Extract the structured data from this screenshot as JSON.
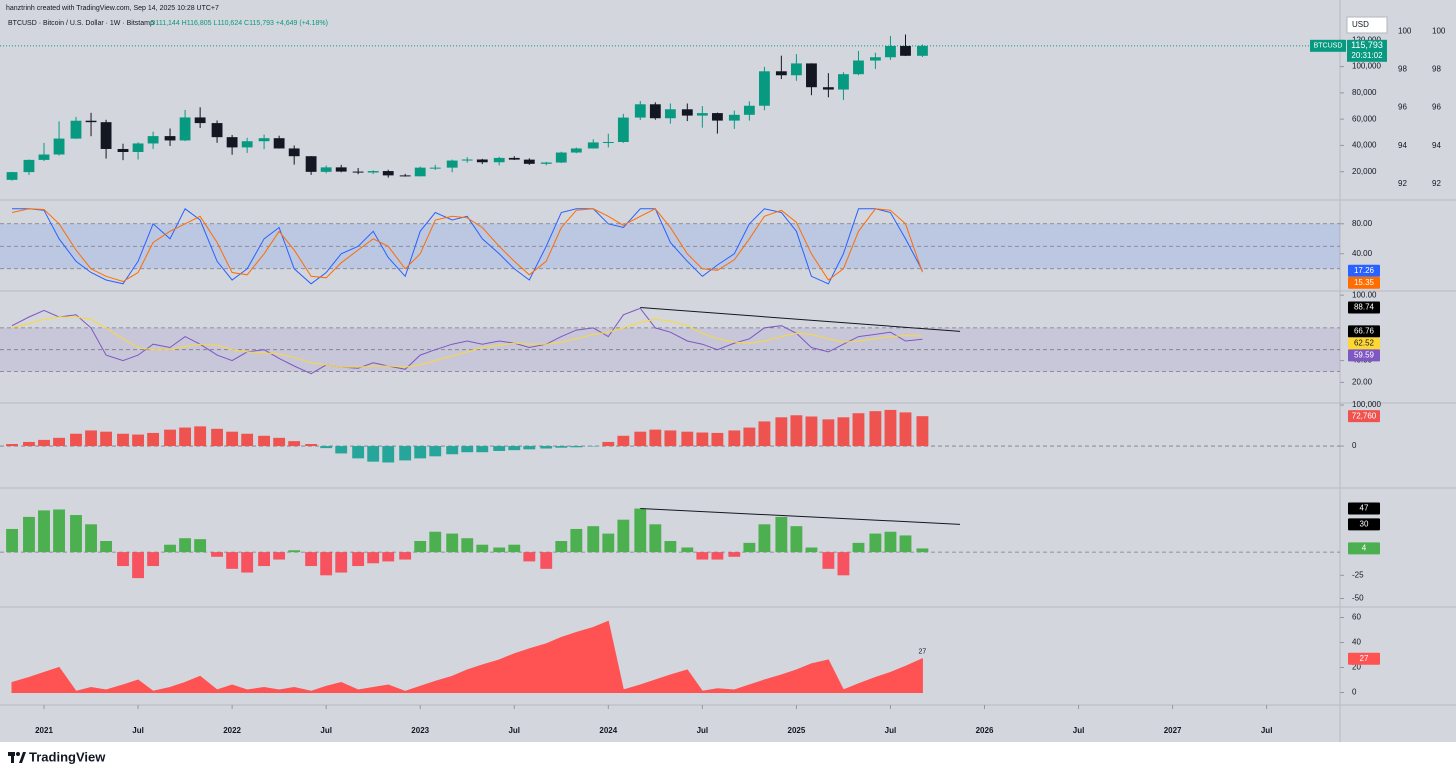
{
  "header": {
    "credit": "hanztrinh created with TradingView.com, Sep 14, 2025 10:28 UTC+7",
    "symbol_line": "BTCUSD · Bitcoin / U.S. Dollar · 1W · Bitstamp",
    "ohlc": "O111,144 H116,805 L110,624 C115,793 +4,649 (+4.18%)"
  },
  "time_axis": {
    "x": [
      2020.83,
      2020.92,
      2021.0,
      2021.08,
      2021.17,
      2021.25,
      2021.33,
      2021.42,
      2021.5,
      2021.58,
      2021.67,
      2021.75,
      2021.83,
      2021.92,
      2022.0,
      2022.08,
      2022.17,
      2022.25,
      2022.33,
      2022.42,
      2022.5,
      2022.58,
      2022.67,
      2022.75,
      2022.83,
      2022.92,
      2023.0,
      2023.08,
      2023.17,
      2023.25,
      2023.33,
      2023.42,
      2023.5,
      2023.58,
      2023.67,
      2023.75,
      2023.83,
      2023.92,
      2024.0,
      2024.08,
      2024.17,
      2024.25,
      2024.33,
      2024.42,
      2024.5,
      2024.58,
      2024.67,
      2024.75,
      2024.83,
      2024.92,
      2025.0,
      2025.08,
      2025.17,
      2025.25,
      2025.33,
      2025.42,
      2025.5,
      2025.58,
      2025.67
    ],
    "xlim": [
      2020.766,
      2027.89
    ],
    "xticks": [
      {
        "value": 2021,
        "label": "2021"
      },
      {
        "value": 2021.5,
        "label": "Jul"
      },
      {
        "value": 2022,
        "label": "2022"
      },
      {
        "value": 2022.5,
        "label": "Jul"
      },
      {
        "value": 2023,
        "label": "2023"
      },
      {
        "value": 2023.5,
        "label": "Jul"
      },
      {
        "value": 2024,
        "label": "2024"
      },
      {
        "value": 2024.5,
        "label": "Jul"
      },
      {
        "value": 2025,
        "label": "2025"
      },
      {
        "value": 2025.5,
        "label": "Jul"
      },
      {
        "value": 2026,
        "label": "2026"
      },
      {
        "value": 2026.5,
        "label": "Jul"
      },
      {
        "value": 2027,
        "label": "2027"
      },
      {
        "value": 2027.5,
        "label": "Jul"
      }
    ]
  },
  "chart_data": [
    {
      "type": "candlestick",
      "currency": "USD",
      "symbol": "BTCUSD",
      "countdown": "20:31:02",
      "last_price": {
        "value": 115793,
        "label": "115,793"
      },
      "colors": {
        "up": "#089981",
        "down": "#131722"
      },
      "open": [
        13800,
        19700,
        29000,
        33100,
        45200,
        58800,
        57700,
        37300,
        35000,
        41500,
        47100,
        43800,
        61300,
        57000,
        46300,
        38500,
        43200,
        45500,
        37700,
        31800,
        19900,
        23300,
        20100,
        19400,
        20500,
        17200,
        16500,
        23100,
        23100,
        28500,
        29300,
        27200,
        30500,
        29200,
        26000,
        27000,
        34600,
        37700,
        42300,
        42600,
        61200,
        71300,
        60700,
        67500,
        62700,
        64600,
        58900,
        63300,
        70200,
        96400,
        93400,
        102400,
        84300,
        82500,
        94200,
        104600,
        107100,
        115700,
        108200
      ],
      "high": [
        19900,
        29300,
        41900,
        58300,
        61700,
        64800,
        59500,
        41300,
        42400,
        50500,
        52900,
        67000,
        69000,
        59000,
        48000,
        45800,
        48200,
        47400,
        40000,
        31900,
        24700,
        25200,
        22800,
        21000,
        21500,
        18400,
        23900,
        25200,
        29200,
        31000,
        29800,
        31400,
        31800,
        30200,
        27500,
        35200,
        38400,
        44700,
        48900,
        64000,
        73800,
        72800,
        71900,
        71900,
        70000,
        65000,
        66500,
        73600,
        99800,
        108300,
        109500,
        102500,
        95000,
        95700,
        111900,
        110500,
        123200,
        124400,
        116800
      ],
      "low": [
        13200,
        17600,
        28100,
        32300,
        45000,
        47000,
        30000,
        28800,
        29300,
        37300,
        39600,
        43300,
        53300,
        42000,
        32900,
        34300,
        37200,
        37600,
        25400,
        17600,
        18800,
        19600,
        18100,
        18200,
        15500,
        16300,
        16500,
        21400,
        19600,
        26900,
        25800,
        24800,
        28900,
        25200,
        24900,
        26600,
        34100,
        37600,
        38500,
        41900,
        59300,
        59600,
        56600,
        58500,
        53500,
        49000,
        52600,
        58900,
        66800,
        90500,
        89200,
        78200,
        76600,
        74500,
        93400,
        98200,
        105100,
        108000,
        107300
      ],
      "close": [
        19700,
        29000,
        33100,
        45200,
        58800,
        57700,
        37300,
        35000,
        41500,
        47100,
        43800,
        61300,
        57000,
        46300,
        38500,
        43200,
        45500,
        37700,
        31800,
        19900,
        23300,
        20100,
        19400,
        20500,
        17200,
        16500,
        23100,
        23100,
        28500,
        29300,
        27200,
        30500,
        29200,
        26000,
        27000,
        34600,
        37700,
        42300,
        42600,
        61200,
        71300,
        60700,
        67500,
        62700,
        64600,
        58900,
        63300,
        70200,
        96400,
        93400,
        102400,
        84300,
        82500,
        94200,
        104600,
        107100,
        115700,
        108200,
        115793
      ],
      "ylim": [
        0,
        140000
      ],
      "yticks": [
        {
          "value": 20000,
          "label": "20,000"
        },
        {
          "value": 40000,
          "label": "40,000"
        },
        {
          "value": 60000,
          "label": "60,000"
        },
        {
          "value": 80000,
          "label": "80,000"
        },
        {
          "value": 100000,
          "label": "100,000"
        },
        {
          "value": 120000,
          "label": "120,000"
        }
      ],
      "y2lim": [
        91.26,
        100.9
      ],
      "y2ticks": [
        92,
        94,
        96,
        98,
        100
      ]
    },
    {
      "type": "line",
      "ylim": [
        -7,
        109
      ],
      "yticks": [
        {
          "value": 40,
          "label": "40.00"
        },
        {
          "value": 80,
          "label": "80.00"
        }
      ],
      "levels": [
        20,
        50,
        80
      ],
      "band_color": "rgba(41,98,255,0.13)",
      "series": [
        {
          "color": "#2962ff",
          "values": [
            100,
            100,
            98,
            60,
            30,
            15,
            5,
            0,
            30,
            80,
            60,
            100,
            85,
            30,
            5,
            20,
            60,
            75,
            20,
            0,
            15,
            40,
            50,
            70,
            35,
            10,
            70,
            95,
            85,
            90,
            60,
            40,
            20,
            5,
            50,
            95,
            100,
            100,
            80,
            75,
            100,
            100,
            55,
            30,
            10,
            25,
            40,
            80,
            100,
            95,
            70,
            10,
            0,
            40,
            100,
            100,
            95,
            60,
            17.26
          ]
        },
        {
          "color": "#ff6d00",
          "values": [
            95,
            100,
            99,
            80,
            45,
            20,
            10,
            3,
            15,
            55,
            70,
            80,
            90,
            55,
            15,
            12,
            40,
            70,
            45,
            10,
            8,
            28,
            45,
            60,
            50,
            20,
            40,
            85,
            90,
            88,
            75,
            50,
            30,
            12,
            30,
            75,
            98,
            100,
            90,
            78,
            90,
            100,
            75,
            40,
            20,
            18,
            32,
            60,
            90,
            98,
            82,
            40,
            5,
            20,
            70,
            100,
            98,
            80,
            15.35
          ]
        }
      ]
    },
    {
      "type": "line",
      "ylim": [
        2,
        102
      ],
      "yticks": [
        {
          "value": 20,
          "label": "20.00"
        },
        {
          "value": 40,
          "label": "40.00"
        },
        {
          "value": 100,
          "label": "100.00"
        }
      ],
      "levels": [
        30,
        50,
        70
      ],
      "band_color": "rgba(126,87,194,0.12)",
      "series": [
        {
          "color": "#7e57c2",
          "values": [
            72,
            80,
            86,
            80,
            82,
            70,
            45,
            40,
            45,
            55,
            52,
            62,
            55,
            45,
            40,
            48,
            50,
            42,
            35,
            28,
            36,
            34,
            33,
            38,
            35,
            32,
            45,
            50,
            55,
            58,
            55,
            58,
            56,
            52,
            55,
            62,
            68,
            70,
            62,
            82,
            88,
            70,
            66,
            58,
            55,
            50,
            56,
            60,
            70,
            72,
            65,
            52,
            48,
            55,
            62,
            64,
            66,
            58,
            59.59
          ]
        },
        {
          "color": "#fdd835",
          "values": [
            70,
            74,
            78,
            80,
            80,
            78,
            70,
            60,
            52,
            50,
            50,
            53,
            55,
            54,
            50,
            48,
            47,
            46,
            43,
            38,
            36,
            34,
            34,
            35,
            35,
            34,
            36,
            40,
            44,
            48,
            52,
            54,
            56,
            55,
            55,
            57,
            60,
            64,
            66,
            70,
            75,
            78,
            76,
            72,
            65,
            60,
            57,
            56,
            58,
            62,
            65,
            64,
            60,
            57,
            58,
            60,
            62,
            63,
            62.52
          ]
        }
      ],
      "trendline": {
        "color": "#131722",
        "x": [
          2024.17,
          2025.87
        ],
        "values": [
          88.74,
          66.76
        ]
      }
    },
    {
      "type": "bar",
      "ylim": [
        -90000,
        100000
      ],
      "yticks": [
        0,
        {
          "value": 100000,
          "label": "100,000"
        }
      ],
      "levels": [
        0
      ],
      "colors": {
        "positive": "#ef5350",
        "negative": "#26a69a"
      },
      "last_value_label": "72,760",
      "values": [
        5000,
        10000,
        15000,
        20000,
        30000,
        38000,
        35000,
        30000,
        28000,
        32000,
        40000,
        45000,
        48000,
        42000,
        35000,
        30000,
        25000,
        20000,
        12000,
        5000,
        -5000,
        -18000,
        -30000,
        -38000,
        -40000,
        -35000,
        -30000,
        -25000,
        -20000,
        -15000,
        -15000,
        -12000,
        -10000,
        -8000,
        -6000,
        -4000,
        -3000,
        -1000,
        10000,
        25000,
        35000,
        40000,
        38000,
        35000,
        33000,
        32000,
        38000,
        45000,
        60000,
        70000,
        75000,
        72000,
        65000,
        70000,
        80000,
        85000,
        88000,
        82000,
        72760
      ]
    },
    {
      "type": "bar",
      "ylim": [
        -57,
        67
      ],
      "yticks": [
        -50,
        -25
      ],
      "levels": [
        0
      ],
      "colors": {
        "positive": "#4caf50",
        "negative": "#f7525f"
      },
      "values": [
        25,
        38,
        45,
        46,
        40,
        30,
        12,
        -15,
        -28,
        -15,
        8,
        15,
        14,
        -5,
        -18,
        -22,
        -15,
        -8,
        2,
        -15,
        -25,
        -22,
        -15,
        -12,
        -10,
        -8,
        12,
        22,
        20,
        15,
        8,
        5,
        8,
        -10,
        -18,
        12,
        25,
        28,
        20,
        35,
        47,
        30,
        12,
        5,
        -8,
        -8,
        -5,
        10,
        30,
        38,
        28,
        5,
        -18,
        -25,
        10,
        20,
        22,
        18,
        4
      ],
      "trendline": {
        "color": "#131722",
        "x": [
          2024.17,
          2025.87
        ],
        "values": [
          47,
          30
        ]
      }
    },
    {
      "type": "area",
      "ylim": [
        -6,
        66
      ],
      "yticks": [
        0,
        20,
        40,
        60
      ],
      "color": "#ff5252",
      "values": [
        8,
        12,
        16,
        20,
        1,
        4,
        2,
        6,
        10,
        1,
        4,
        8,
        13,
        2,
        6,
        2,
        4,
        2,
        4,
        1,
        5,
        8,
        2,
        4,
        6,
        1,
        5,
        9,
        13,
        18,
        22,
        26,
        31,
        35,
        39,
        44,
        48,
        52,
        57,
        2,
        6,
        10,
        14,
        18,
        1,
        3,
        2,
        6,
        10,
        14,
        18,
        23,
        26,
        2,
        7,
        12,
        16,
        21,
        27
      ]
    }
  ],
  "footer": {
    "brand": "TradingView"
  }
}
